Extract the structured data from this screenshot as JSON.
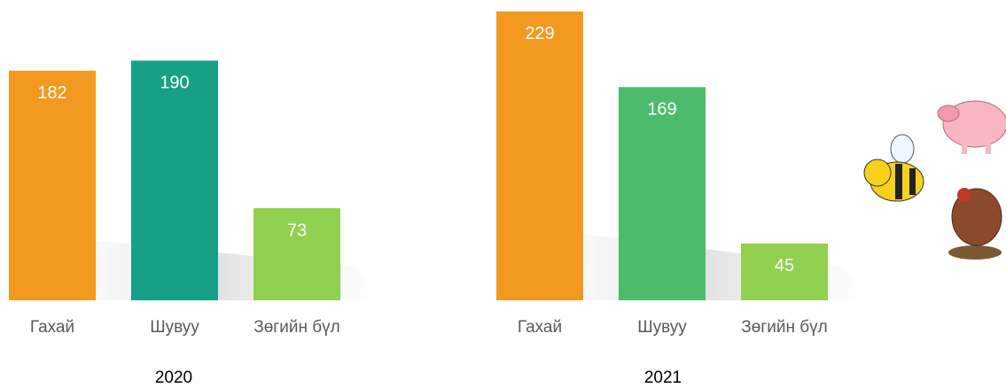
{
  "chart_data": [
    {
      "type": "bar",
      "title": "2020",
      "categories": [
        "Гахай",
        "Шувуу",
        "Зөгийн бүл"
      ],
      "values": [
        182,
        190,
        73
      ],
      "colors": [
        "#f29a1f",
        "#16a085",
        "#92d050"
      ]
    },
    {
      "type": "bar",
      "title": "2021",
      "categories": [
        "Гахай",
        "Шувуу",
        "Зөгийн бүл"
      ],
      "values": [
        229,
        169,
        45
      ],
      "colors": [
        "#f29a1f",
        "#4cbb6c",
        "#92d050"
      ]
    }
  ]
}
